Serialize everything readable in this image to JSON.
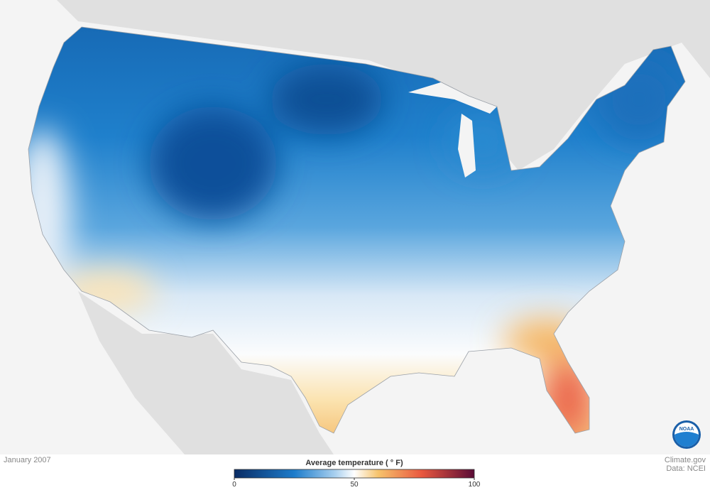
{
  "map": {
    "date": "January 2007",
    "credit": "Climate.gov",
    "source": "Data: NCEI",
    "logo": "NOAA"
  },
  "legend": {
    "title": "Average temperature ( ° F)",
    "range": [
      0,
      100
    ],
    "ticks": [
      0,
      50,
      100
    ]
  }
}
